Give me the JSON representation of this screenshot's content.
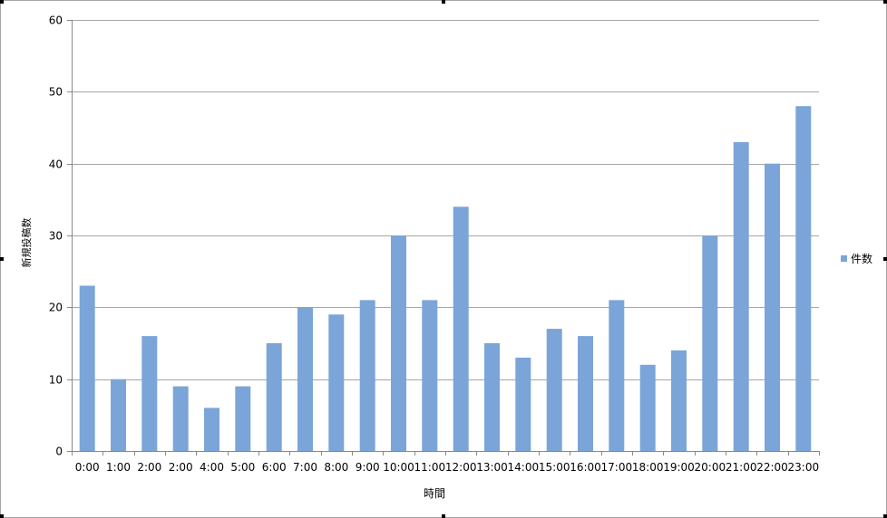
{
  "chart_data": {
    "type": "bar",
    "title": "",
    "xlabel": "時間",
    "ylabel": "新規投稿数",
    "ylim": [
      0,
      60
    ],
    "yticks": [
      "0",
      "10",
      "20",
      "30",
      "40",
      "50",
      "60"
    ],
    "grid": true,
    "legend_position": "right",
    "categories": [
      "0:00",
      "1:00",
      "2:00",
      "2:00",
      "4:00",
      "5:00",
      "6:00",
      "7:00",
      "8:00",
      "9:00",
      "10:00",
      "11:00",
      "12:00",
      "13:00",
      "14:00",
      "15:00",
      "16:00",
      "17:00",
      "18:00",
      "19:00",
      "20:00",
      "21:00",
      "22:00",
      "23:00"
    ],
    "series": [
      {
        "name": "件数",
        "color": "#7ba5d8",
        "values": [
          23,
          10,
          16,
          9,
          6,
          9,
          15,
          20,
          19,
          21,
          30,
          21,
          34,
          15,
          13,
          17,
          16,
          21,
          12,
          14,
          30,
          43,
          40,
          48
        ]
      }
    ]
  }
}
